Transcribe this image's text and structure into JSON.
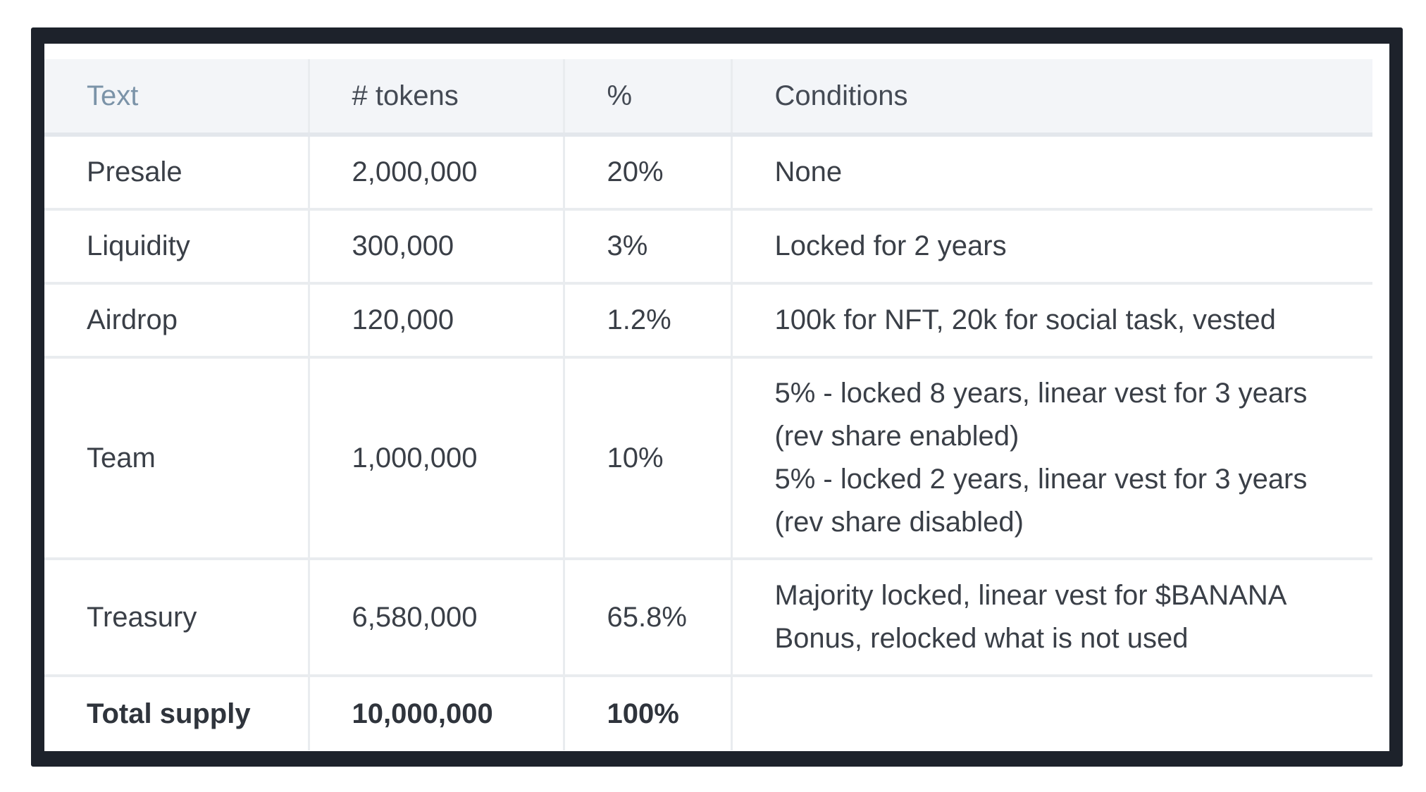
{
  "table": {
    "headers": [
      "Text",
      "# tokens",
      "%",
      "Conditions"
    ],
    "rows": [
      {
        "name": "Presale",
        "tokens": "2,000,000",
        "percent": "20%",
        "conditions": [
          "None"
        ]
      },
      {
        "name": "Liquidity",
        "tokens": "300,000",
        "percent": "3%",
        "conditions": [
          "Locked for 2 years"
        ]
      },
      {
        "name": "Airdrop",
        "tokens": "120,000",
        "percent": "1.2%",
        "conditions": [
          "100k for NFT, 20k for social task, vested"
        ]
      },
      {
        "name": "Team",
        "tokens": "1,000,000",
        "percent": "10%",
        "conditions": [
          "5% - locked 8 years, linear vest for 3 years",
          "(rev share enabled)",
          "5% - locked 2 years, linear vest for 3 years",
          "(rev share disabled)"
        ]
      },
      {
        "name": "Treasury",
        "tokens": "6,580,000",
        "percent": "65.8%",
        "conditions": [
          "Majority locked, linear vest for $BANANA",
          "Bonus, relocked what is not used"
        ]
      }
    ],
    "total": {
      "name": "Total supply",
      "tokens": "10,000,000",
      "percent": "100%",
      "conditions": ""
    }
  }
}
